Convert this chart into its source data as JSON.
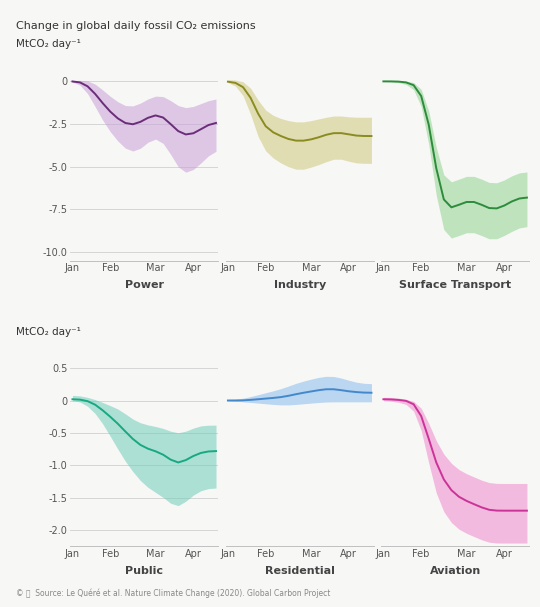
{
  "title_line1": "Change in global daily fossil CO₂ emissions",
  "ylabel_top": "MtCO₂ day⁻¹",
  "ylabel_bottom": "MtCO₂ day⁻¹",
  "source_text": "© ⓘ  Source: Le Quéré et al. Nature Climate Change (2020). Global Carbon Project",
  "background_color": "#f7f7f5",
  "subplots": [
    {
      "label": "Power",
      "line_color": "#6b2d7a",
      "fill_color": "#c9a0d9",
      "fill_alpha": 0.55,
      "ylim": [
        -10.5,
        0.5
      ],
      "yticks": [
        0.0,
        -2.5,
        -5.0,
        -7.5,
        -10.0
      ],
      "ytick_labels": [
        "0",
        "-2.5",
        "-5.0",
        "-7.5",
        "-10.0"
      ],
      "mean": [
        0.0,
        0.0,
        -0.2,
        -0.7,
        -1.3,
        -1.8,
        -2.2,
        -2.5,
        -2.6,
        -2.4,
        -2.1,
        -1.9,
        -2.0,
        -2.5,
        -3.0,
        -3.2,
        -3.1,
        -2.8,
        -2.5,
        -2.4
      ],
      "upper": [
        0.05,
        0.05,
        0.1,
        -0.1,
        -0.5,
        -0.9,
        -1.2,
        -1.5,
        -1.5,
        -1.3,
        -1.0,
        -0.8,
        -0.8,
        -1.1,
        -1.5,
        -1.6,
        -1.5,
        -1.3,
        -1.1,
        -1.0
      ],
      "lower": [
        0.0,
        -0.1,
        -0.6,
        -1.5,
        -2.3,
        -3.0,
        -3.5,
        -4.0,
        -4.2,
        -4.0,
        -3.5,
        -3.2,
        -3.5,
        -4.2,
        -5.2,
        -5.5,
        -5.2,
        -4.8,
        -4.3,
        -4.0
      ]
    },
    {
      "label": "Industry",
      "line_color": "#8b8b20",
      "fill_color": "#d4d090",
      "fill_alpha": 0.65,
      "ylim": [
        -10.5,
        0.5
      ],
      "yticks": [],
      "ytick_labels": [],
      "mean": [
        0.0,
        -0.05,
        -0.2,
        -0.8,
        -2.0,
        -2.8,
        -3.0,
        -3.2,
        -3.4,
        -3.5,
        -3.5,
        -3.4,
        -3.3,
        -3.1,
        -3.0,
        -3.0,
        -3.1,
        -3.2,
        -3.2,
        -3.2
      ],
      "upper": [
        0.1,
        0.1,
        0.05,
        -0.2,
        -1.2,
        -1.8,
        -2.0,
        -2.2,
        -2.3,
        -2.4,
        -2.4,
        -2.3,
        -2.2,
        -2.1,
        -2.0,
        -2.0,
        -2.1,
        -2.1,
        -2.1,
        -2.1
      ],
      "lower": [
        0.0,
        -0.2,
        -0.6,
        -1.8,
        -3.5,
        -4.2,
        -4.5,
        -4.8,
        -5.0,
        -5.2,
        -5.2,
        -5.0,
        -4.9,
        -4.7,
        -4.5,
        -4.5,
        -4.7,
        -4.8,
        -4.8,
        -4.8
      ]
    },
    {
      "label": "Surface Transport",
      "line_color": "#2d8b3c",
      "fill_color": "#90d490",
      "fill_alpha": 0.55,
      "ylim": [
        -10.5,
        0.5
      ],
      "yticks": [],
      "ytick_labels": [],
      "mean": [
        0.0,
        0.0,
        0.0,
        -0.05,
        -0.1,
        -0.5,
        -2.0,
        -5.5,
        -7.5,
        -7.5,
        -7.2,
        -7.0,
        -7.0,
        -7.2,
        -7.5,
        -7.5,
        -7.3,
        -7.0,
        -6.8,
        -6.8
      ],
      "upper": [
        0.05,
        0.05,
        0.05,
        0.02,
        0.0,
        -0.2,
        -1.2,
        -4.2,
        -6.0,
        -6.0,
        -5.7,
        -5.5,
        -5.5,
        -5.7,
        -6.0,
        -6.0,
        -5.8,
        -5.5,
        -5.3,
        -5.3
      ],
      "lower": [
        0.0,
        -0.02,
        -0.05,
        -0.15,
        -0.3,
        -1.0,
        -3.2,
        -7.2,
        -9.3,
        -9.3,
        -9.0,
        -8.8,
        -8.8,
        -9.0,
        -9.3,
        -9.3,
        -9.0,
        -8.8,
        -8.5,
        -8.5
      ]
    },
    {
      "label": "Public",
      "line_color": "#18a882",
      "fill_color": "#70ceba",
      "fill_alpha": 0.55,
      "ylim": [
        -2.25,
        0.65
      ],
      "yticks": [
        0.5,
        0.0,
        -0.5,
        -1.0,
        -1.5,
        -2.0
      ],
      "ytick_labels": [
        "0.5",
        "0",
        "-0.5",
        "-1.0",
        "-1.5",
        "-2.0"
      ],
      "mean": [
        0.02,
        0.02,
        0.0,
        -0.05,
        -0.15,
        -0.25,
        -0.35,
        -0.48,
        -0.6,
        -0.7,
        -0.75,
        -0.78,
        -0.82,
        -0.92,
        -1.0,
        -0.92,
        -0.85,
        -0.8,
        -0.78,
        -0.78
      ],
      "upper": [
        0.08,
        0.08,
        0.05,
        0.02,
        -0.03,
        -0.08,
        -0.12,
        -0.2,
        -0.3,
        -0.35,
        -0.38,
        -0.4,
        -0.42,
        -0.48,
        -0.52,
        -0.48,
        -0.42,
        -0.38,
        -0.38,
        -0.38
      ],
      "lower": [
        0.0,
        0.0,
        -0.08,
        -0.18,
        -0.35,
        -0.55,
        -0.75,
        -0.95,
        -1.1,
        -1.25,
        -1.35,
        -1.42,
        -1.48,
        -1.6,
        -1.68,
        -1.55,
        -1.45,
        -1.38,
        -1.35,
        -1.35
      ]
    },
    {
      "label": "Residential",
      "line_color": "#4488cc",
      "fill_color": "#88bbee",
      "fill_alpha": 0.55,
      "ylim": [
        -2.25,
        0.65
      ],
      "yticks": [],
      "ytick_labels": [],
      "mean": [
        0.0,
        0.0,
        0.0,
        0.01,
        0.02,
        0.03,
        0.04,
        0.05,
        0.07,
        0.1,
        0.12,
        0.14,
        0.16,
        0.18,
        0.18,
        0.16,
        0.14,
        0.13,
        0.12,
        0.12
      ],
      "upper": [
        0.02,
        0.02,
        0.03,
        0.06,
        0.09,
        0.12,
        0.15,
        0.18,
        0.22,
        0.27,
        0.3,
        0.33,
        0.36,
        0.38,
        0.38,
        0.35,
        0.31,
        0.28,
        0.26,
        0.26
      ],
      "lower": [
        0.0,
        -0.01,
        -0.02,
        -0.03,
        -0.04,
        -0.05,
        -0.06,
        -0.07,
        -0.07,
        -0.06,
        -0.05,
        -0.04,
        -0.03,
        -0.02,
        -0.02,
        -0.02,
        -0.02,
        -0.02,
        -0.02,
        -0.02
      ]
    },
    {
      "label": "Aviation",
      "line_color": "#cc3399",
      "fill_color": "#ee88cc",
      "fill_alpha": 0.55,
      "ylim": [
        -2.25,
        0.65
      ],
      "yticks": [],
      "ytick_labels": [],
      "mean": [
        0.02,
        0.02,
        0.01,
        0.0,
        -0.02,
        -0.15,
        -0.6,
        -1.0,
        -1.25,
        -1.4,
        -1.5,
        -1.55,
        -1.6,
        -1.65,
        -1.7,
        -1.7,
        -1.7,
        -1.7,
        -1.7,
        -1.7
      ],
      "upper": [
        0.05,
        0.05,
        0.04,
        0.02,
        0.0,
        -0.05,
        -0.35,
        -0.65,
        -0.85,
        -0.98,
        -1.08,
        -1.13,
        -1.18,
        -1.23,
        -1.28,
        -1.28,
        -1.28,
        -1.28,
        -1.28,
        -1.28
      ],
      "lower": [
        0.0,
        -0.01,
        -0.02,
        -0.05,
        -0.1,
        -0.35,
        -1.0,
        -1.5,
        -1.75,
        -1.9,
        -2.0,
        -2.05,
        -2.1,
        -2.15,
        -2.2,
        -2.2,
        -2.2,
        -2.2,
        -2.2,
        -2.2
      ]
    }
  ],
  "xtick_labels": [
    "Jan",
    "Feb",
    "Mar",
    "Apr"
  ],
  "xtick_positions": [
    0,
    5,
    11,
    16
  ],
  "grid_color": "#d0d0d0",
  "spine_color": "#c0c0c0",
  "label_color": "#444444",
  "tick_color": "#555555"
}
